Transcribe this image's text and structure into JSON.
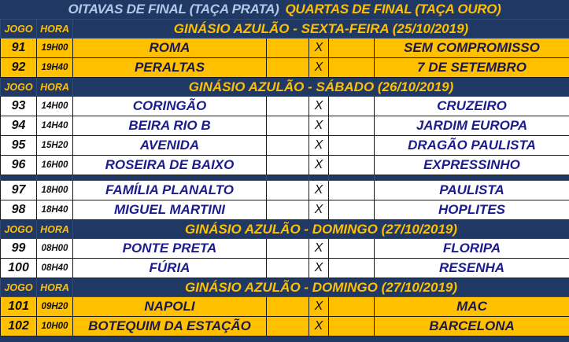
{
  "title": {
    "part1": "OITAVAS DE FINAL (TAÇA PRATA)",
    "part2": "QUARTAS DE FINAL (TAÇA OURO)"
  },
  "colors": {
    "navy": "#1f3864",
    "gold": "#ffc000",
    "team_text_blue": "#1c1c8c"
  },
  "sections": [
    {
      "jogo_label": "JOGO",
      "hora_label": "HORA",
      "venue": "GINÁSIO AZULÃO - SEXTA-FEIRA (25/10/2019)",
      "style": "gold",
      "games": [
        {
          "jogo": "91",
          "hora": "19H00",
          "home": "ROMA",
          "vs": "X",
          "away": "SEM COMPROMISSO"
        },
        {
          "jogo": "92",
          "hora": "19H40",
          "home": "PERALTAS",
          "vs": "X",
          "away": "7 DE SETEMBRO"
        }
      ]
    },
    {
      "jogo_label": "JOGO",
      "hora_label": "HORA",
      "venue": "GINÁSIO AZULÃO - SÁBADO (26/10/2019)",
      "style": "white",
      "games": [
        {
          "jogo": "93",
          "hora": "14H00",
          "home": "CORINGÃO",
          "vs": "X",
          "away": "CRUZEIRO"
        },
        {
          "jogo": "94",
          "hora": "14H40",
          "home": "BEIRA RIO B",
          "vs": "X",
          "away": "JARDIM EUROPA"
        },
        {
          "jogo": "95",
          "hora": "15H20",
          "home": "AVENIDA",
          "vs": "X",
          "away": "DRAGÃO PAULISTA"
        },
        {
          "jogo": "96",
          "hora": "16H00",
          "home": "ROSEIRA DE BAIXO",
          "vs": "X",
          "away": "EXPRESSINHO"
        },
        {
          "gap": true
        },
        {
          "jogo": "97",
          "hora": "18H00",
          "home": "FAMÍLIA PLANALTO",
          "vs": "X",
          "away": "PAULISTA"
        },
        {
          "jogo": "98",
          "hora": "18H40",
          "home": "MIGUEL MARTINI",
          "vs": "X",
          "away": "HOPLITES"
        }
      ]
    },
    {
      "jogo_label": "JOGO",
      "hora_label": "HORA",
      "venue": "GINÁSIO AZULÃO - DOMINGO (27/10/2019)",
      "style": "white",
      "games": [
        {
          "jogo": "99",
          "hora": "08H00",
          "home": "PONTE PRETA",
          "vs": "X",
          "away": "FLORIPA"
        },
        {
          "jogo": "100",
          "hora": "08H40",
          "home": "FÚRIA",
          "vs": "X",
          "away": "RESENHA"
        }
      ]
    },
    {
      "jogo_label": "JOGO",
      "hora_label": "HORA",
      "venue": "GINÁSIO AZULÃO - DOMINGO (27/10/2019)",
      "style": "gold",
      "games": [
        {
          "jogo": "101",
          "hora": "09H20",
          "home": "NAPOLI",
          "vs": "X",
          "away": "MAC"
        },
        {
          "jogo": "102",
          "hora": "10H00",
          "home": "BOTEQUIM DA ESTAÇÃO",
          "vs": "X",
          "away": "BARCELONA"
        }
      ]
    }
  ]
}
